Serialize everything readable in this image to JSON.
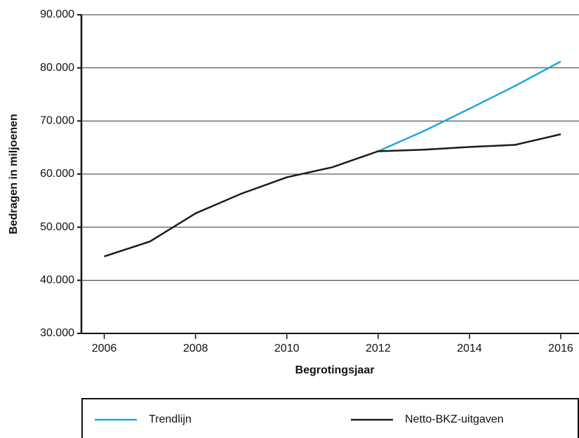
{
  "chart_data": {
    "type": "line",
    "xlabel": "Begrotingsjaar",
    "ylabel": "Bedragen in miljoenen",
    "x": [
      2006,
      2007,
      2008,
      2009,
      2010,
      2011,
      2012,
      2013,
      2014,
      2015,
      2016
    ],
    "series": [
      {
        "name": "Trendlijn",
        "color": "#1ea6e0",
        "values": [
          null,
          null,
          null,
          null,
          null,
          null,
          64.3,
          68.1,
          72.3,
          76.6,
          81.2
        ]
      },
      {
        "name": "Netto-BKZ-uitgaven",
        "color": "#1a1a1a",
        "values": [
          44.5,
          47.3,
          52.6,
          56.3,
          59.4,
          61.3,
          64.3,
          64.6,
          65.1,
          65.5,
          67.5
        ]
      }
    ],
    "xlim": [
      2005.5,
      2016.4
    ],
    "xticks": [
      2006,
      2008,
      2010,
      2012,
      2014,
      2016
    ],
    "ylim": [
      30,
      90
    ],
    "yticks": [
      {
        "value": 30,
        "label": "30.000"
      },
      {
        "value": 40,
        "label": "40.000"
      },
      {
        "value": 50,
        "label": "50.000"
      },
      {
        "value": 60,
        "label": "60.000"
      },
      {
        "value": 70,
        "label": "70.000"
      },
      {
        "value": 80,
        "label": "80.000"
      },
      {
        "value": 90,
        "label": "90.000"
      }
    ],
    "grid": true,
    "legend": "bottom"
  }
}
